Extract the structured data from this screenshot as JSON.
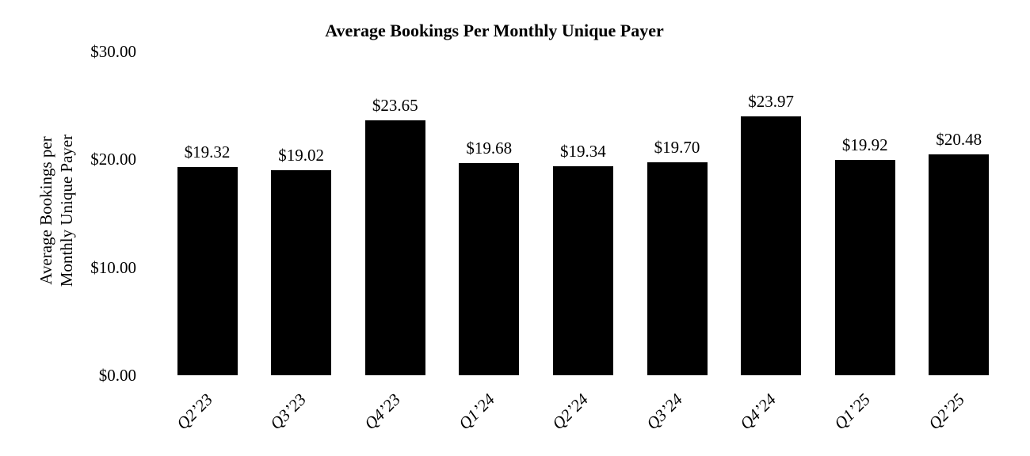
{
  "page": {
    "background_color": "#ffffff",
    "text_color": "#000000"
  },
  "chart_data": {
    "type": "bar",
    "title": "Average Bookings Per Monthly Unique Payer",
    "ylabel": "Average Bookings per Monthly Unique Payer",
    "y_axis_title_lines": [
      "Average Bookings per",
      "Monthly Unique Payer"
    ],
    "xlabel": "",
    "categories": [
      "Q2’23",
      "Q3’23",
      "Q4’23",
      "Q1’24",
      "Q2’24",
      "Q3’24",
      "Q4’24",
      "Q1’25",
      "Q2’25"
    ],
    "values": [
      19.32,
      19.02,
      23.65,
      19.68,
      19.34,
      19.7,
      23.97,
      19.92,
      20.48
    ],
    "value_labels": [
      "$19.32",
      "$19.02",
      "$23.65",
      "$19.68",
      "$19.34",
      "$19.70",
      "$23.97",
      "$19.92",
      "$20.48"
    ],
    "ylim": [
      0,
      30
    ],
    "yticks": [
      {
        "value": 0,
        "label": "$0.00"
      },
      {
        "value": 10,
        "label": "$10.00"
      },
      {
        "value": 20,
        "label": "$20.00"
      },
      {
        "value": 30,
        "label": "$30.00"
      }
    ],
    "bar_color": "#000000",
    "grid": false,
    "legend": null
  }
}
